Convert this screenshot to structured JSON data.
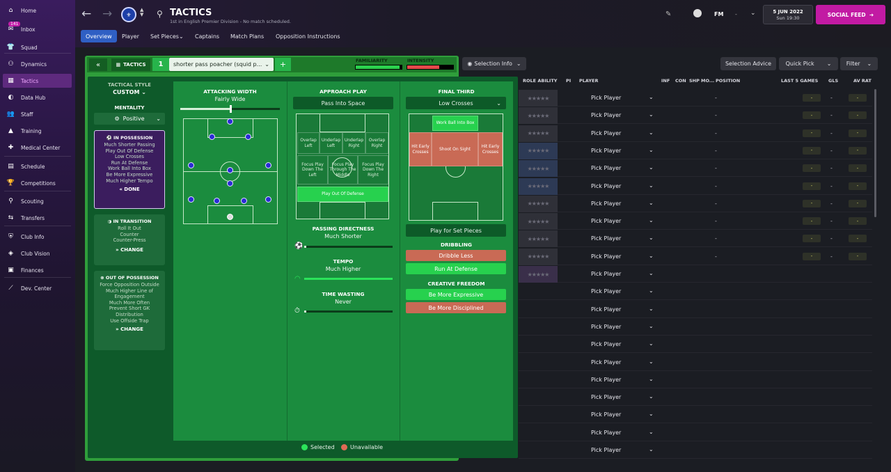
{
  "sidebar": {
    "items": [
      {
        "label": "Home",
        "icon": "home-icon"
      },
      {
        "label": "Inbox",
        "icon": "inbox-icon",
        "badge": "141"
      },
      {
        "label": "Squad",
        "icon": "shirt-icon"
      },
      {
        "label": "Dynamics",
        "icon": "dynamics-icon"
      },
      {
        "label": "Tactics",
        "icon": "tactics-icon"
      },
      {
        "label": "Data Hub",
        "icon": "data-hub-icon"
      },
      {
        "label": "Staff",
        "icon": "staff-icon"
      },
      {
        "label": "Training",
        "icon": "training-icon"
      },
      {
        "label": "Medical Center",
        "icon": "medical-icon"
      },
      {
        "label": "Schedule",
        "icon": "calendar-icon"
      },
      {
        "label": "Competitions",
        "icon": "trophy-icon"
      },
      {
        "label": "Scouting",
        "icon": "scouting-icon"
      },
      {
        "label": "Transfers",
        "icon": "transfers-icon"
      },
      {
        "label": "Club Info",
        "icon": "club-info-icon"
      },
      {
        "label": "Club Vision",
        "icon": "vision-icon"
      },
      {
        "label": "Finances",
        "icon": "finances-icon"
      },
      {
        "label": "Dev. Center",
        "icon": "dev-center-icon"
      }
    ]
  },
  "header": {
    "title": "TACTICS",
    "subtitle": "1st in English Premier Division - No match scheduled.",
    "fm": "FM",
    "fm_dash": "-",
    "date": "5 JUN 2022",
    "time": "Sun 19:30",
    "social": "SOCIAL FEED",
    "tabs": [
      "Overview",
      "Player",
      "Set Pieces",
      "Captains",
      "Match Plans",
      "Opposition Instructions"
    ]
  },
  "tactic": {
    "label": "TACTICS",
    "number": "1",
    "name": "shorter pass poacher (squid p...",
    "add": "+",
    "familiarity": "FAMILIARITY",
    "intensity": "INTENSITY",
    "familiarity_level": 0.95,
    "intensity_level": 0.7,
    "selection_info": "Selection Info"
  },
  "left": {
    "style_title": "TACTICAL STYLE",
    "style_value": "CUSTOM",
    "mentality_title": "MENTALITY",
    "mentality_value": "Positive",
    "in_possession": {
      "title": "IN POSSESSION",
      "lines": [
        "Much Shorter Passing",
        "Play Out Of Defense",
        "Low Crosses",
        "Run At Defense",
        "Work Ball Into Box",
        "Be More Expressive",
        "Much Higher Tempo"
      ],
      "button": "DONE"
    },
    "in_transition": {
      "title": "IN TRANSITION",
      "lines": [
        "Roll It Out",
        "Counter",
        "Counter-Press"
      ],
      "button": "CHANGE"
    },
    "out_of_possession": {
      "title": "OUT OF POSSESSION",
      "lines": [
        "Force Opposition Outside",
        "Much Higher Line of",
        "Engagement",
        "Much More Often",
        "Prevent Short GK",
        "Distribution",
        "Use Offside Trap"
      ],
      "button": "CHANGE"
    }
  },
  "attacking": {
    "title": "ATTACKING WIDTH",
    "value": "Fairly Wide",
    "level": 0.5
  },
  "approach": {
    "title": "APPROACH PLAY",
    "value": "Pass Into Space",
    "zones": [
      "Overlap Left",
      "Underlap Left",
      "Underlap Right",
      "Overlap Right",
      "Focus Play Down The Left",
      "Focus Play Through The Middle",
      "Focus Play Down The Right",
      "Play Out Of Defense"
    ],
    "passing_title": "PASSING DIRECTNESS",
    "passing_value": "Much Shorter",
    "tempo_title": "TEMPO",
    "tempo_value": "Much Higher",
    "timewasting_title": "TIME WASTING",
    "timewasting_value": "Never",
    "passing_level": 0.0,
    "tempo_level": 1.0,
    "timewasting_level": 0.0
  },
  "final_third": {
    "title": "FINAL THIRD",
    "value": "Low Crosses",
    "zones": [
      "Work Ball Into Box",
      "Hit Early Crosses",
      "Shoot On Sight",
      "Hit Early Crosses"
    ],
    "set_pieces": "Play for Set Pieces",
    "dribbling_title": "DRIBBLING",
    "dribble_less": "Dribble Less",
    "run_at_defense": "Run At Defense",
    "creative_title": "CREATIVE FREEDOM",
    "be_expressive": "Be More Expressive",
    "be_disciplined": "Be More Disciplined"
  },
  "legend": {
    "selected": "Selected",
    "unavailable": "Unavailable"
  },
  "table": {
    "buttons": [
      "Selection Advice",
      "Quick Pick",
      "Filter"
    ],
    "headers": [
      "ROLE ABILITY",
      "PI",
      "PLAYER",
      "INF",
      "CON",
      "SHP",
      "MO...",
      "POSITION",
      "LAST 5 GAMES",
      "GLS",
      "AV RAT"
    ],
    "pick_label": "Pick Player",
    "row_count": 21,
    "dash": "-"
  },
  "colors": {
    "accent": "#c21aa3",
    "selected": "#27d14e",
    "unavailable": "#c96a55"
  }
}
